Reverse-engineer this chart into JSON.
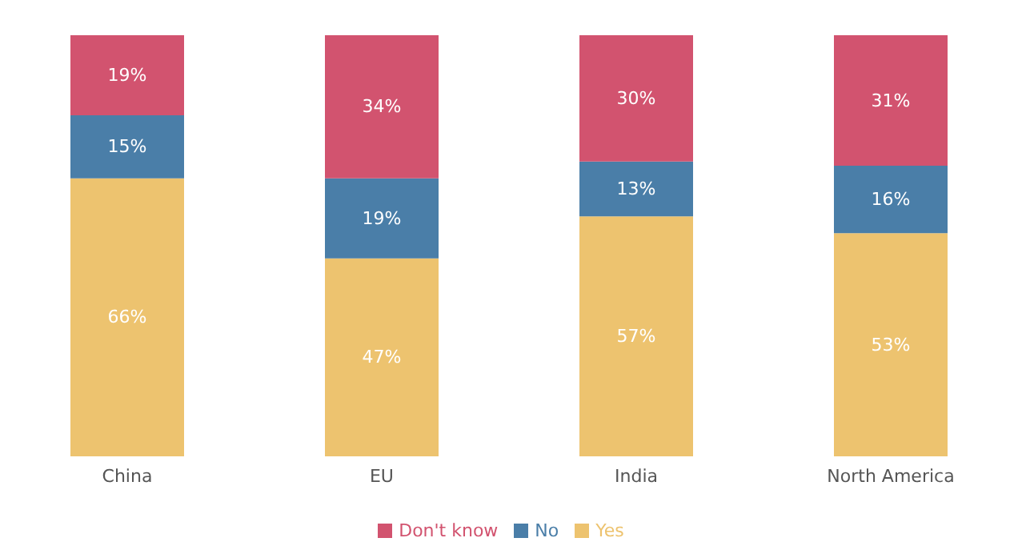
{
  "chart_data": {
    "type": "bar",
    "stacked": true,
    "categories": [
      "China",
      "EU",
      "India",
      "North America"
    ],
    "series": [
      {
        "name": "Yes",
        "color": "#edc36f",
        "values": [
          66,
          47,
          57,
          53
        ],
        "value_labels": [
          "66%",
          "47%",
          "57%",
          "53%"
        ]
      },
      {
        "name": "No",
        "color": "#4a7ea8",
        "values": [
          15,
          19,
          13,
          16
        ],
        "value_labels": [
          "15%",
          "19%",
          "13%",
          "16%"
        ]
      },
      {
        "name": "Don't know",
        "color": "#d2536f",
        "values": [
          19,
          34,
          30,
          31
        ],
        "value_labels": [
          "19%",
          "34%",
          "30%",
          "31%"
        ]
      }
    ],
    "tick_labels": "x",
    "legend": "bottom"
  }
}
